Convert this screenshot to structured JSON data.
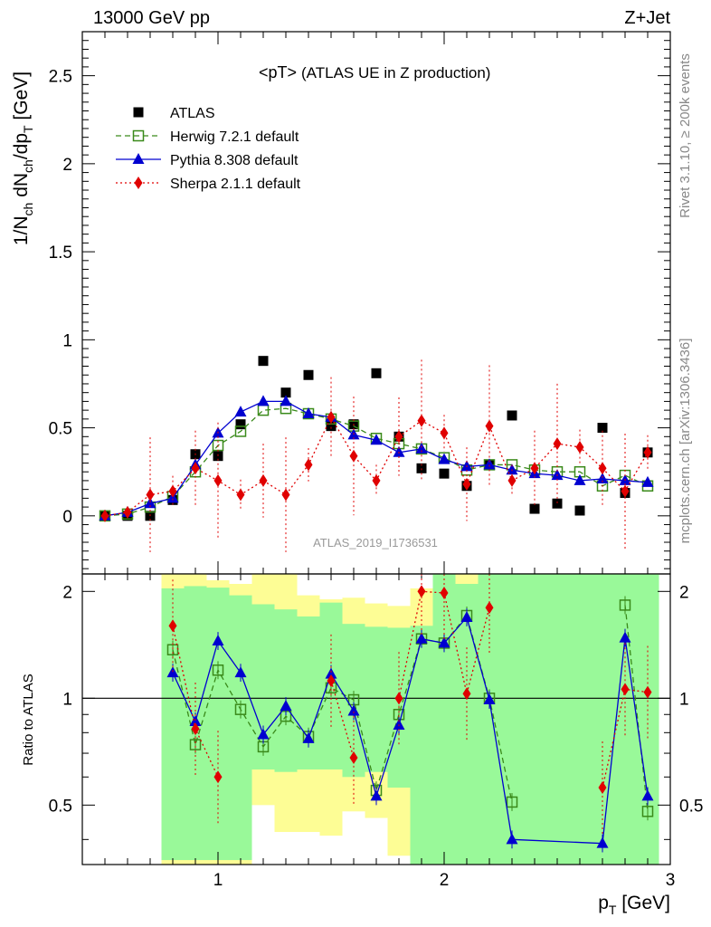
{
  "header": {
    "left": "13000 GeV pp",
    "right": "Z+Jet"
  },
  "side_text": {
    "rivet": "Rivet 3.1.10, ≥ 200k events",
    "mcplots": "mcplots.cern.ch [arXiv:1306.3436]"
  },
  "chart_data": [
    {
      "type": "scatter",
      "title": "<pT>",
      "subtitle": "(ATLAS UE in Z production)",
      "watermark": "ATLAS_2019_I1736531",
      "ylabel_main": "1/N",
      "ylabel_sub1": "ch",
      "ylabel_mid": " dN",
      "ylabel_sub2": "ch",
      "ylabel_tail": "/dp",
      "ylabel_sub3": "T",
      "ylabel_unit": " [GeV]",
      "xlim": [
        0.4,
        3.0
      ],
      "ylim": [
        -0.33,
        2.75
      ],
      "yticks": [
        0,
        0.5,
        1,
        1.5,
        2,
        2.5
      ],
      "ytick_labels": [
        "0",
        "0.5",
        "1",
        "1.5",
        "2",
        "2.5"
      ],
      "legend_position": "top-left",
      "x": [
        0.5,
        0.6,
        0.7,
        0.8,
        0.9,
        1.0,
        1.1,
        1.2,
        1.3,
        1.4,
        1.5,
        1.6,
        1.7,
        1.8,
        1.9,
        2.0,
        2.1,
        2.2,
        2.3,
        2.4,
        2.5,
        2.6,
        2.7,
        2.8,
        2.9
      ],
      "series": [
        {
          "name": "ATLAS",
          "color": "#000000",
          "marker": "filled-square",
          "line": "none",
          "values": [
            0.0,
            0.0,
            0.0,
            0.09,
            0.35,
            0.34,
            0.52,
            0.88,
            0.7,
            0.8,
            0.51,
            0.52,
            0.81,
            0.45,
            0.27,
            0.24,
            0.17,
            0.29,
            0.57,
            0.04,
            0.07,
            0.03,
            0.5,
            0.13,
            0.36
          ]
        },
        {
          "name": "Herwig 7.2.1 default",
          "color": "#3a8a1a",
          "marker": "open-square",
          "line": "dashed",
          "values": [
            0.0,
            0.01,
            0.05,
            0.11,
            0.25,
            0.4,
            0.48,
            0.6,
            0.61,
            0.58,
            0.55,
            0.51,
            0.44,
            0.41,
            0.38,
            0.33,
            0.26,
            0.29,
            0.29,
            0.26,
            0.25,
            0.25,
            0.17,
            0.23,
            0.17
          ]
        },
        {
          "name": "Pythia 8.308 default",
          "color": "#0000d0",
          "marker": "filled-triangle",
          "line": "solid",
          "values": [
            0.0,
            0.02,
            0.07,
            0.1,
            0.29,
            0.47,
            0.59,
            0.65,
            0.65,
            0.58,
            0.56,
            0.46,
            0.43,
            0.36,
            0.38,
            0.32,
            0.28,
            0.29,
            0.26,
            0.24,
            0.23,
            0.2,
            0.21,
            0.2,
            0.19
          ]
        },
        {
          "name": "Sherpa 2.1.1 default",
          "color": "#e00000",
          "marker": "filled-diamond",
          "line": "dotted",
          "values": [
            0.0,
            0.02,
            0.12,
            0.14,
            0.27,
            0.2,
            0.12,
            0.2,
            0.12,
            0.29,
            0.56,
            0.34,
            0.2,
            0.45,
            0.54,
            0.47,
            0.18,
            0.51,
            0.2,
            0.27,
            0.41,
            0.39,
            0.27,
            0.14,
            0.36
          ]
        }
      ]
    },
    {
      "type": "line",
      "ylabel": "Ratio to ATLAS",
      "xlabel_main": "p",
      "xlabel_sub": "T",
      "xlabel_unit": " [GeV]",
      "xlim": [
        0.4,
        3.0
      ],
      "ylim": [
        0.34,
        2.24
      ],
      "xticks": [
        1,
        2,
        3
      ],
      "xtick_labels": [
        "1",
        "2",
        "3"
      ],
      "yticks": [
        0.5,
        1,
        2
      ],
      "ytick_labels": [
        "0.5",
        "1",
        "2"
      ],
      "band_colors": {
        "inner": "#99f999",
        "outer": "#fdfd95"
      },
      "band_edges": [
        0.75,
        0.85,
        0.95,
        1.05,
        1.15,
        1.25,
        1.35,
        1.45,
        1.55,
        1.65,
        1.75,
        1.85,
        1.95,
        2.05,
        2.15,
        2.25,
        2.35,
        2.45,
        2.55,
        2.65,
        2.75,
        2.85,
        2.95
      ],
      "band_inner": [
        [
          0.35,
          2.04
        ],
        [
          0.35,
          2.07
        ],
        [
          0.35,
          2.05
        ],
        [
          0.35,
          1.95
        ],
        [
          0.63,
          1.84
        ],
        [
          0.62,
          1.78
        ],
        [
          0.63,
          1.7
        ],
        [
          0.63,
          1.86
        ],
        [
          0.6,
          1.62
        ],
        [
          0.62,
          1.59
        ],
        [
          0.56,
          1.58
        ],
        [
          0.34,
          1.6
        ],
        [
          0.34,
          2.24
        ],
        [
          0.34,
          2.1
        ],
        [
          0.34,
          2.24
        ],
        [
          0.34,
          2.24
        ],
        [
          0.34,
          2.24
        ],
        [
          0.34,
          2.24
        ],
        [
          0.34,
          2.24
        ],
        [
          0.34,
          2.24
        ],
        [
          0.34,
          2.24
        ],
        [
          0.34,
          2.24
        ]
      ],
      "band_outer": [
        [
          0.34,
          2.24
        ],
        [
          0.34,
          2.24
        ],
        [
          0.34,
          2.15
        ],
        [
          0.34,
          2.1
        ],
        [
          0.5,
          2.24
        ],
        [
          0.42,
          2.24
        ],
        [
          0.42,
          1.95
        ],
        [
          0.41,
          1.9
        ],
        [
          0.48,
          1.92
        ],
        [
          0.46,
          1.85
        ],
        [
          0.36,
          1.82
        ],
        [
          0.34,
          2.04
        ],
        [
          0.34,
          2.24
        ],
        [
          0.34,
          2.24
        ],
        [
          0.34,
          2.24
        ],
        [
          0.34,
          2.24
        ],
        [
          0.34,
          2.24
        ],
        [
          0.34,
          2.24
        ],
        [
          0.34,
          2.24
        ],
        [
          0.34,
          2.24
        ],
        [
          0.34,
          2.24
        ],
        [
          0.34,
          2.24
        ]
      ],
      "x": [
        0.8,
        0.9,
        1.0,
        1.1,
        1.2,
        1.3,
        1.4,
        1.5,
        1.6,
        1.7,
        1.8,
        1.9,
        2.0,
        2.1,
        2.2,
        2.3,
        2.7,
        2.8,
        2.9
      ],
      "series": [
        {
          "name": "Herwig 7.2.1 default",
          "color": "#3a8a1a",
          "values": [
            1.37,
            0.74,
            1.2,
            0.93,
            0.73,
            0.89,
            0.78,
            1.07,
            0.99,
            0.55,
            0.9,
            1.47,
            1.43,
            1.71,
            1.0,
            0.51,
            null,
            1.83,
            0.48
          ]
        },
        {
          "name": "Pythia 8.308 default",
          "color": "#0000d0",
          "values": [
            1.18,
            0.86,
            1.45,
            1.18,
            0.79,
            0.95,
            0.77,
            1.17,
            0.92,
            0.53,
            0.84,
            1.47,
            1.43,
            1.69,
            0.99,
            0.4,
            0.39,
            1.48,
            0.53
          ]
        },
        {
          "name": "Sherpa 2.1.1 default",
          "color": "#e00000",
          "values": [
            1.6,
            0.82,
            0.6,
            null,
            null,
            null,
            null,
            1.12,
            0.68,
            null,
            1.0,
            2.0,
            1.98,
            1.03,
            1.8,
            null,
            0.56,
            1.06,
            1.04
          ]
        }
      ]
    }
  ]
}
